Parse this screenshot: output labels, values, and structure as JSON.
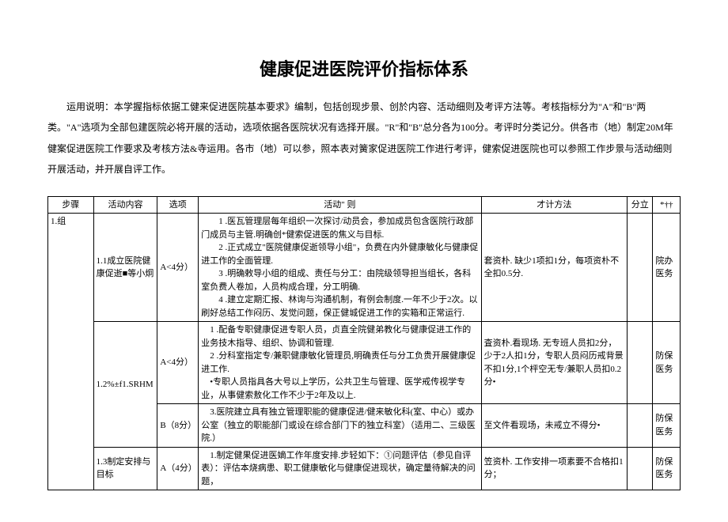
{
  "title": "健康促进医院评价指标体系",
  "intro": "运用说明：本学握指标依据工健来促进医院基本要求》编制，包括创现步景、创於内容、活动细则及考评方法等。考核指标分为\"A\"和\"B\"两类。\"A\"选项为全部包建医院必将开展的活动，选项依据各医院状况有选择开展。\"R\"和\"B\"总分各为100分。考评时分类记分。供各市（地）制定20M年健案促进医院工作要求及考核方法&寺运用。各市（地）可以参，照本表对簧家促进医院工作进行考评，健索促进医院也可以参照工作步景与活动细则开展活动，并开展自评工作。",
  "headers": {
    "step": "步骤",
    "activity": "活动内容",
    "option": "选项",
    "rule": "活动\" 则",
    "method": "才计方法",
    "score": "分立",
    "mark": "*††"
  },
  "rows": [
    {
      "step": "1.组",
      "activity": "1.1成立医院健康促逝■等小炯",
      "option": "A<4分）",
      "rule": "　　1 .医瓦管理层每年组织一次探讨/动员会，参加成员包含医院行政部门成员与主管.明确创*健索促进医的焦义与目标.\n　　2 .正式成立\"医院健康促逝领导小组\"，负费在内外健康敏化与健康促进工作的全面管理.\n　　3 .明确敕导小组的组成、责任与分工：由院级领导担当组长，各科室负费人卷加，人员构成合理，分工明确.\n　　4 .建立定期汇报、林询与沟通机制，有例会制度.一年不少于2次。以刷好总结工作闷历、发觉问题，保正健城促进工作的实箱和正常运行.",
      "method": "套资朴. 缺少1项扣1分，每项资朴不全扣0.5分.",
      "score": "",
      "mark": "院办\n医务"
    },
    {
      "step": "",
      "activity": "1.2%±f1.SRHM",
      "option": "A<4分）",
      "rule": "　1 .配备专职健康促进专职人员，贞直全院健弟教化与健康促进工作的业务技木指导、组织、协调和管理.\n　2 .分科室指定专/兼职健康敏化管理员,明确责任与分工负贵开展健康促进工作.\n　•专职人员指具各大号以上学历，公共卫生与管理、医学戒传视学专业，从事健索敖化工作不少于2年及以上.",
      "method": "査资朴.看现场. 无专班人员扣2分，少于2人扣1分，专职人员闷历戒背景不扣1分,1个枰空无专/兼职人员扣0.2分•",
      "score": "",
      "mark": "防保\n医务"
    },
    {
      "step": "",
      "activity": "",
      "option": "B（8分）",
      "rule": "　3.医院建立具有独立管理职能的健康促进/健来敏化科(室、中心）或办公室（独立的职能部门或设在综合部门下的独立科室）（适用二、三级医院.）",
      "method": "至文件看现场，未戒立不得分•",
      "score": "",
      "mark": "防保\n医务"
    },
    {
      "step": "",
      "activity": "1.3制定安排与目标",
      "option": "A（4分）",
      "rule": "　1.制定健果促进医嫡工作年度安排.步轻如下：①问题评估（参见自评表）：评估本烧病患、职工健康敏化与健康促进现状，确定量待解决的问题，",
      "method": "笠资朴. 工作安排一项素要不合格扣1分；",
      "score": "",
      "mark": "防保医务"
    }
  ],
  "styling": {
    "title_fontsize": 22,
    "body_fontsize": 12,
    "table_fontsize": 11,
    "border_color": "#000000",
    "background_color": "#ffffff",
    "text_color": "#000000",
    "font_family": "SimSun"
  }
}
